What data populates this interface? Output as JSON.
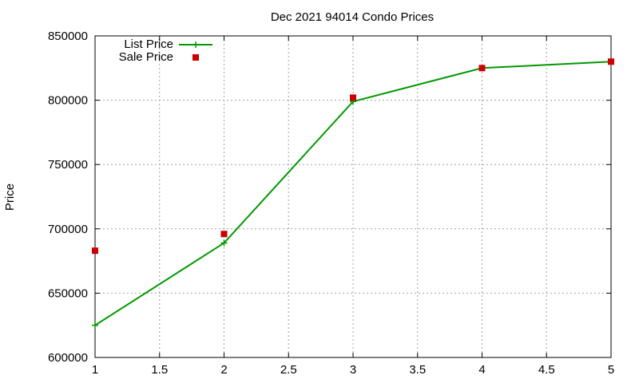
{
  "chart_data": {
    "type": "line",
    "title": "Dec 2021 94014 Condo Prices",
    "xlabel": "",
    "ylabel": "Price",
    "xlim": [
      1,
      5
    ],
    "ylim": [
      600000,
      850000
    ],
    "xticks": [
      1,
      1.5,
      2,
      2.5,
      3,
      3.5,
      4,
      4.5,
      5
    ],
    "yticks": [
      600000,
      650000,
      700000,
      750000,
      800000,
      850000
    ],
    "grid": true,
    "legend_position": "top-left",
    "series": [
      {
        "name": "List Price",
        "style": "linespoints",
        "marker": "plus",
        "color": "#009900",
        "x": [
          1,
          2,
          3,
          4,
          5
        ],
        "y": [
          625000,
          689000,
          799000,
          825000,
          830000
        ]
      },
      {
        "name": "Sale Price",
        "style": "points",
        "marker": "square",
        "color": "#cc0000",
        "x": [
          1,
          2,
          3,
          4,
          5
        ],
        "y": [
          683000,
          696000,
          802000,
          825000,
          830000
        ]
      }
    ]
  }
}
